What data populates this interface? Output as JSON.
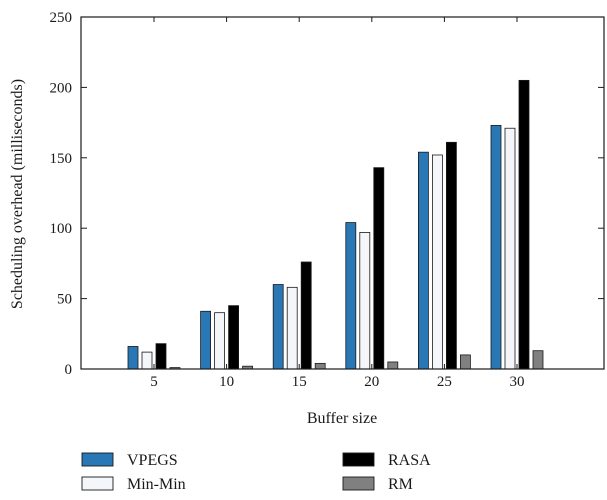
{
  "chart_data": {
    "type": "bar",
    "title": "",
    "xlabel": "Buffer size",
    "ylabel": "Scheduling overhead (milliseconds)",
    "ylim": [
      0,
      250
    ],
    "yticks": [
      0,
      50,
      100,
      150,
      200,
      250
    ],
    "categories": [
      "5",
      "10",
      "15",
      "20",
      "25",
      "30"
    ],
    "series": [
      {
        "name": "VPEGS",
        "color": "#2a77b6",
        "values": [
          16,
          41,
          60,
          104,
          154,
          173
        ]
      },
      {
        "name": "Min-Min",
        "color": "#f4f6fa",
        "values": [
          12,
          40,
          58,
          97,
          152,
          171
        ]
      },
      {
        "name": "RASA",
        "color": "#000000",
        "values": [
          18,
          45,
          76,
          143,
          161,
          205
        ]
      },
      {
        "name": "RM",
        "color": "#808080",
        "values": [
          1,
          2,
          4,
          5,
          10,
          13
        ]
      }
    ],
    "grid": false,
    "legend_position": "bottom"
  }
}
